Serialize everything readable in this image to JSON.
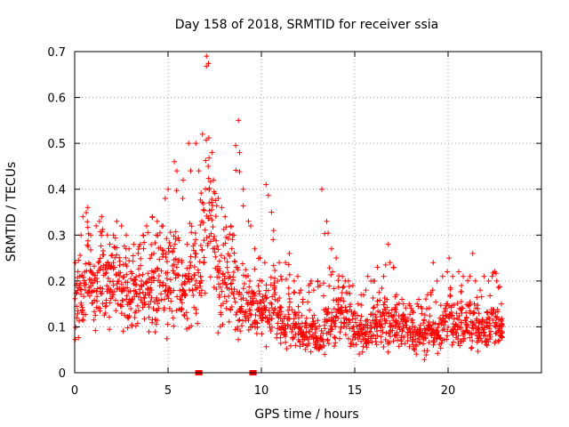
{
  "chart_data": {
    "type": "scatter",
    "title": "Day 158 of 2018, SRMTID for receiver ssia",
    "xlabel": "GPS time / hours",
    "ylabel": "SRMTID / TECUs",
    "xlim": [
      0,
      25
    ],
    "ylim": [
      0,
      0.7
    ],
    "xticks": [
      0,
      5,
      10,
      15,
      20
    ],
    "yticks": [
      0,
      0.1,
      0.2,
      0.3,
      0.4,
      0.5,
      0.6,
      0.7
    ],
    "xtick_labels": [
      "0",
      "5",
      "10",
      "15",
      "20"
    ],
    "ytick_labels": [
      "0",
      "0.1",
      "0.2",
      "0.3",
      "0.4",
      "0.5",
      "0.6",
      "0.7"
    ],
    "grid": true,
    "marker": "+",
    "color": "#ff0000",
    "coverage_hours": [
      0,
      22.9
    ],
    "gap_markers_hours": [
      6.6,
      6.7,
      9.5,
      9.6
    ],
    "series": [
      {
        "name": "SRMTID",
        "x": [
          0.0,
          0.2,
          0.4,
          0.6,
          0.8,
          1.0,
          1.2,
          1.4,
          1.6,
          1.8,
          2.0,
          2.2,
          2.4,
          2.6,
          2.8,
          3.0,
          3.2,
          3.4,
          3.6,
          3.8,
          4.0,
          4.2,
          4.4,
          4.6,
          4.8,
          5.0,
          5.2,
          5.4,
          5.6,
          5.8,
          6.0,
          6.2,
          6.4,
          6.6,
          6.8,
          7.0,
          7.2,
          7.4,
          7.6,
          7.8,
          8.0,
          8.2,
          8.4,
          8.6,
          8.8,
          9.0,
          9.2,
          9.4,
          9.6,
          9.8,
          10.0,
          10.2,
          10.4,
          10.6,
          10.8,
          11.0,
          11.2,
          11.4,
          11.6,
          11.8,
          12.0,
          12.2,
          12.4,
          12.6,
          12.8,
          13.0,
          13.2,
          13.4,
          13.6,
          13.8,
          14.0,
          14.2,
          14.4,
          14.6,
          14.8,
          15.0,
          15.2,
          15.4,
          15.6,
          15.8,
          16.0,
          16.2,
          16.4,
          16.6,
          16.8,
          17.0,
          17.2,
          17.4,
          17.6,
          17.8,
          18.0,
          18.2,
          18.4,
          18.6,
          18.8,
          19.0,
          19.2,
          19.4,
          19.6,
          19.8,
          20.0,
          20.2,
          20.4,
          20.6,
          20.8,
          21.0,
          21.2,
          21.4,
          21.6,
          21.8,
          22.0,
          22.2,
          22.4,
          22.6,
          22.8
        ],
        "y_mean": [
          0.15,
          0.17,
          0.16,
          0.22,
          0.2,
          0.18,
          0.21,
          0.23,
          0.2,
          0.18,
          0.19,
          0.2,
          0.18,
          0.22,
          0.17,
          0.16,
          0.15,
          0.19,
          0.17,
          0.18,
          0.2,
          0.18,
          0.2,
          0.21,
          0.2,
          0.21,
          0.22,
          0.22,
          0.18,
          0.16,
          0.19,
          0.21,
          0.24,
          0.2,
          0.28,
          0.38,
          0.32,
          0.26,
          0.2,
          0.18,
          0.2,
          0.22,
          0.2,
          0.16,
          0.14,
          0.16,
          0.15,
          0.14,
          0.12,
          0.13,
          0.14,
          0.14,
          0.13,
          0.16,
          0.11,
          0.1,
          0.1,
          0.12,
          0.1,
          0.1,
          0.09,
          0.08,
          0.09,
          0.1,
          0.09,
          0.08,
          0.09,
          0.12,
          0.1,
          0.1,
          0.14,
          0.13,
          0.12,
          0.11,
          0.1,
          0.09,
          0.09,
          0.08,
          0.09,
          0.1,
          0.1,
          0.12,
          0.11,
          0.11,
          0.1,
          0.12,
          0.1,
          0.09,
          0.1,
          0.09,
          0.08,
          0.08,
          0.08,
          0.08,
          0.08,
          0.09,
          0.08,
          0.08,
          0.1,
          0.12,
          0.12,
          0.1,
          0.11,
          0.11,
          0.1,
          0.11,
          0.1,
          0.1,
          0.09,
          0.1,
          0.1,
          0.11,
          0.1,
          0.11,
          0.1
        ],
        "y_max": [
          0.24,
          0.3,
          0.34,
          0.36,
          0.3,
          0.32,
          0.33,
          0.34,
          0.3,
          0.28,
          0.3,
          0.33,
          0.32,
          0.3,
          0.27,
          0.28,
          0.26,
          0.28,
          0.3,
          0.32,
          0.34,
          0.3,
          0.33,
          0.32,
          0.38,
          0.4,
          0.46,
          0.44,
          0.38,
          0.42,
          0.5,
          0.44,
          0.5,
          0.44,
          0.52,
          0.69,
          0.48,
          0.42,
          0.38,
          0.36,
          0.34,
          0.32,
          0.3,
          0.55,
          0.48,
          0.4,
          0.33,
          0.32,
          0.27,
          0.25,
          0.24,
          0.41,
          0.35,
          0.31,
          0.24,
          0.21,
          0.24,
          0.26,
          0.2,
          0.21,
          0.18,
          0.16,
          0.19,
          0.2,
          0.18,
          0.2,
          0.4,
          0.33,
          0.27,
          0.22,
          0.25,
          0.21,
          0.2,
          0.2,
          0.19,
          0.15,
          0.17,
          0.18,
          0.21,
          0.2,
          0.2,
          0.23,
          0.21,
          0.28,
          0.24,
          0.23,
          0.17,
          0.16,
          0.15,
          0.15,
          0.14,
          0.15,
          0.16,
          0.14,
          0.17,
          0.18,
          0.24,
          0.2,
          0.21,
          0.22,
          0.25,
          0.21,
          0.22,
          0.19,
          0.21,
          0.21,
          0.26,
          0.2,
          0.18,
          0.21,
          0.2,
          0.21,
          0.22,
          0.2,
          0.15
        ]
      }
    ]
  }
}
